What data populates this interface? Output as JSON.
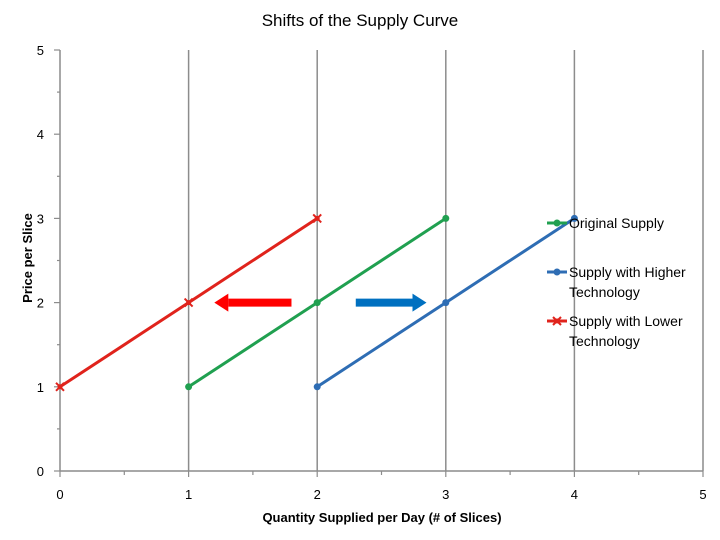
{
  "chart_data": {
    "type": "line",
    "title": "Shifts of the Supply Curve",
    "xlabel": "Quantity Supplied per Day (# of Slices)",
    "ylabel": "Price per Slice",
    "xlim": [
      0,
      5
    ],
    "ylim": [
      0,
      5
    ],
    "x_ticks": [
      "0",
      "1",
      "2",
      "3",
      "4",
      "5"
    ],
    "y_ticks": [
      "0",
      "1",
      "2",
      "3",
      "4",
      "5"
    ],
    "grid": "vertical",
    "legend_position": "right",
    "series": [
      {
        "name": "Original Supply",
        "color": "#20a050",
        "marker": "circle",
        "points": [
          [
            1,
            1
          ],
          [
            2,
            2
          ],
          [
            3,
            3
          ]
        ]
      },
      {
        "name": "Supply with Higher Technology",
        "color": "#2e6db4",
        "marker": "circle",
        "points": [
          [
            2,
            1
          ],
          [
            3,
            2
          ],
          [
            4,
            3
          ]
        ]
      },
      {
        "name": "Supply with Lower Technology",
        "color": "#e0231c",
        "marker": "x",
        "points": [
          [
            0,
            1
          ],
          [
            1,
            2
          ],
          [
            2,
            3
          ]
        ]
      }
    ],
    "annotations": [
      {
        "type": "arrow",
        "direction": "left",
        "color": "#ff0000",
        "from": [
          1.8,
          2
        ],
        "to": [
          1.2,
          2
        ]
      },
      {
        "type": "arrow",
        "direction": "right",
        "color": "#0070c0",
        "from": [
          2.3,
          2
        ],
        "to": [
          2.85,
          2
        ]
      }
    ]
  }
}
